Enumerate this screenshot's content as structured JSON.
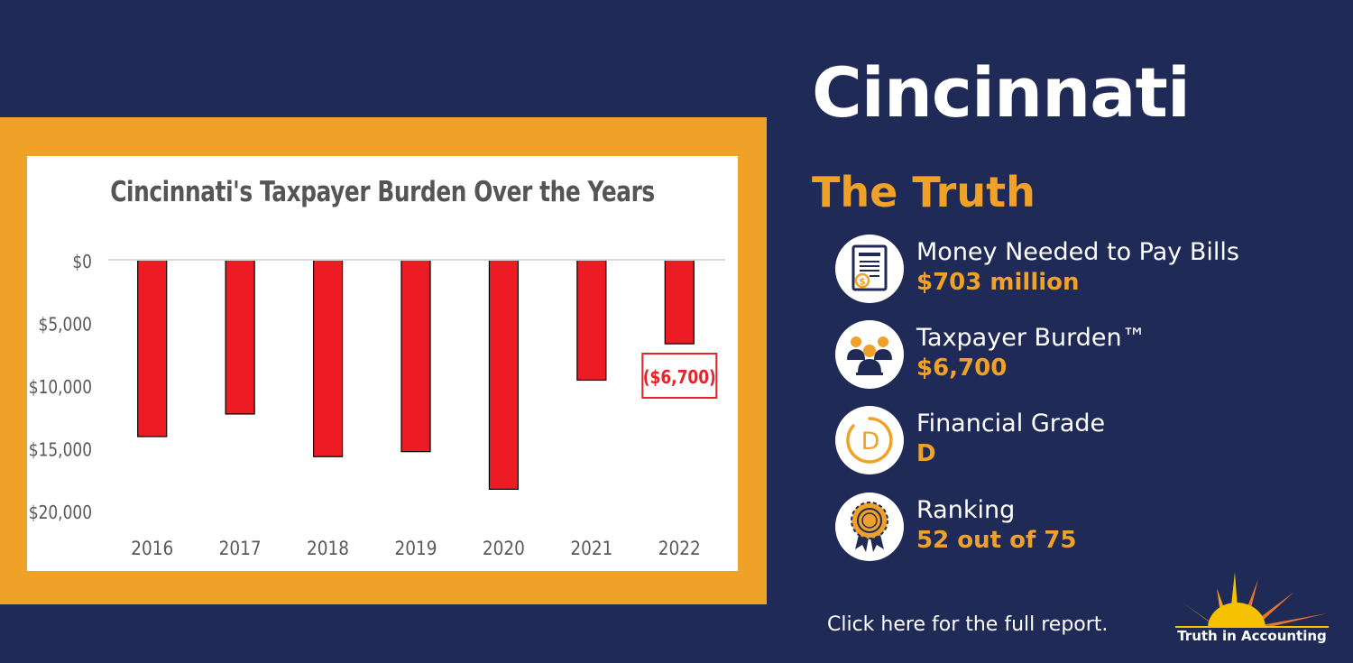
{
  "colors": {
    "background": "#1f2a57",
    "frame": "#f0a128",
    "bar": "#ed1c24",
    "accent": "#f0a128",
    "callout": "#e5232b"
  },
  "chart_data": {
    "type": "bar",
    "title": "Cincinnati's Taxpayer Burden Over the Years",
    "categories": [
      "2016",
      "2017",
      "2018",
      "2019",
      "2020",
      "2021",
      "2022"
    ],
    "values": [
      -14100,
      -12300,
      -15700,
      -15300,
      -18300,
      -9600,
      -6700
    ],
    "y_tick_labels": [
      "$0",
      "$5,000",
      "$10,000",
      "$15,000",
      "$20,000"
    ],
    "y_tick_values": [
      0,
      -5000,
      -10000,
      -15000,
      -20000
    ],
    "ylim": [
      -20000,
      0
    ],
    "callout_label": "($6,700)",
    "callout_category": "2022",
    "xlabel": "",
    "ylabel": "",
    "grid": false
  },
  "panel": {
    "city": "Cincinnati",
    "heading": "The Truth",
    "metrics": [
      {
        "icon": "bill-document-icon",
        "label": "Money Needed to Pay Bills",
        "value": "$703 million"
      },
      {
        "icon": "taxpayers-icon",
        "label": "Taxpayer Burden™",
        "value": "$6,700"
      },
      {
        "icon": "grade-letter-icon",
        "label": "Financial Grade",
        "value": "D"
      },
      {
        "icon": "award-ribbon-icon",
        "label": "Ranking",
        "value": "52 out of 75"
      }
    ],
    "report_link": "Click here for the full report."
  },
  "logo": {
    "text": "Truth in Accounting",
    "icon": "sunrise-logo-icon"
  }
}
